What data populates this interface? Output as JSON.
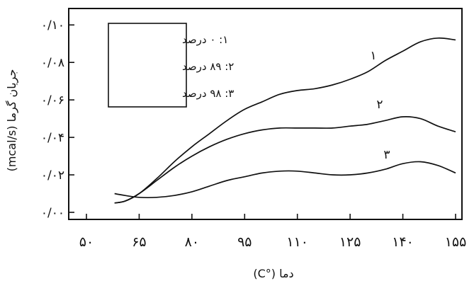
{
  "chart_data": {
    "type": "line",
    "title": "",
    "xlabel": "دما (°C)",
    "ylabel": "جریان گرما (mcal/s)",
    "xlim": [
      50,
      155
    ],
    "ylim": [
      0,
      0.105
    ],
    "x_tick_labels": [
      "۵۰",
      "۶۵",
      "۸۰",
      "۹۵",
      "۱۱۰",
      "۱۲۵",
      "۱۴۰",
      "۱۵۵"
    ],
    "x_ticks": [
      50,
      65,
      80,
      95,
      110,
      125,
      140,
      155
    ],
    "y_tick_labels": [
      "۰/۰۰",
      "۰/۰۲",
      "۰/۰۴",
      "۰/۰۶",
      "۰/۰۸",
      "۰/۱۰"
    ],
    "y_ticks": [
      0,
      0.02,
      0.04,
      0.06,
      0.08,
      0.1
    ],
    "legend": [
      "۱: ۰ درصد",
      "۲: ۸۹ درصد",
      "۳: ۹۸ درصد"
    ],
    "legend_position": "top-left",
    "grid": false,
    "series": [
      {
        "label": "۱",
        "x": [
          58,
          61,
          65,
          70,
          75,
          80,
          85,
          90,
          95,
          100,
          105,
          110,
          115,
          120,
          125,
          130,
          135,
          140,
          145,
          150,
          155
        ],
        "y": [
          0.005,
          0.006,
          0.01,
          0.018,
          0.027,
          0.035,
          0.042,
          0.049,
          0.055,
          0.059,
          0.063,
          0.065,
          0.066,
          0.068,
          0.071,
          0.075,
          0.081,
          0.086,
          0.091,
          0.093,
          0.092
        ]
      },
      {
        "label": "۲",
        "x": [
          58,
          61,
          65,
          70,
          75,
          80,
          85,
          90,
          95,
          100,
          105,
          110,
          115,
          120,
          125,
          130,
          135,
          140,
          145,
          150,
          155
        ],
        "y": [
          0.005,
          0.006,
          0.01,
          0.017,
          0.024,
          0.03,
          0.035,
          0.039,
          0.042,
          0.044,
          0.045,
          0.045,
          0.045,
          0.045,
          0.046,
          0.047,
          0.049,
          0.051,
          0.05,
          0.046,
          0.043
        ]
      },
      {
        "label": "۳",
        "x": [
          58,
          61,
          65,
          70,
          75,
          80,
          85,
          90,
          95,
          100,
          105,
          110,
          115,
          120,
          125,
          130,
          135,
          140,
          145,
          150,
          155
        ],
        "y": [
          0.01,
          0.009,
          0.008,
          0.008,
          0.009,
          0.011,
          0.014,
          0.017,
          0.019,
          0.021,
          0.022,
          0.022,
          0.021,
          0.02,
          0.02,
          0.021,
          0.023,
          0.026,
          0.027,
          0.025,
          0.021
        ]
      }
    ]
  }
}
